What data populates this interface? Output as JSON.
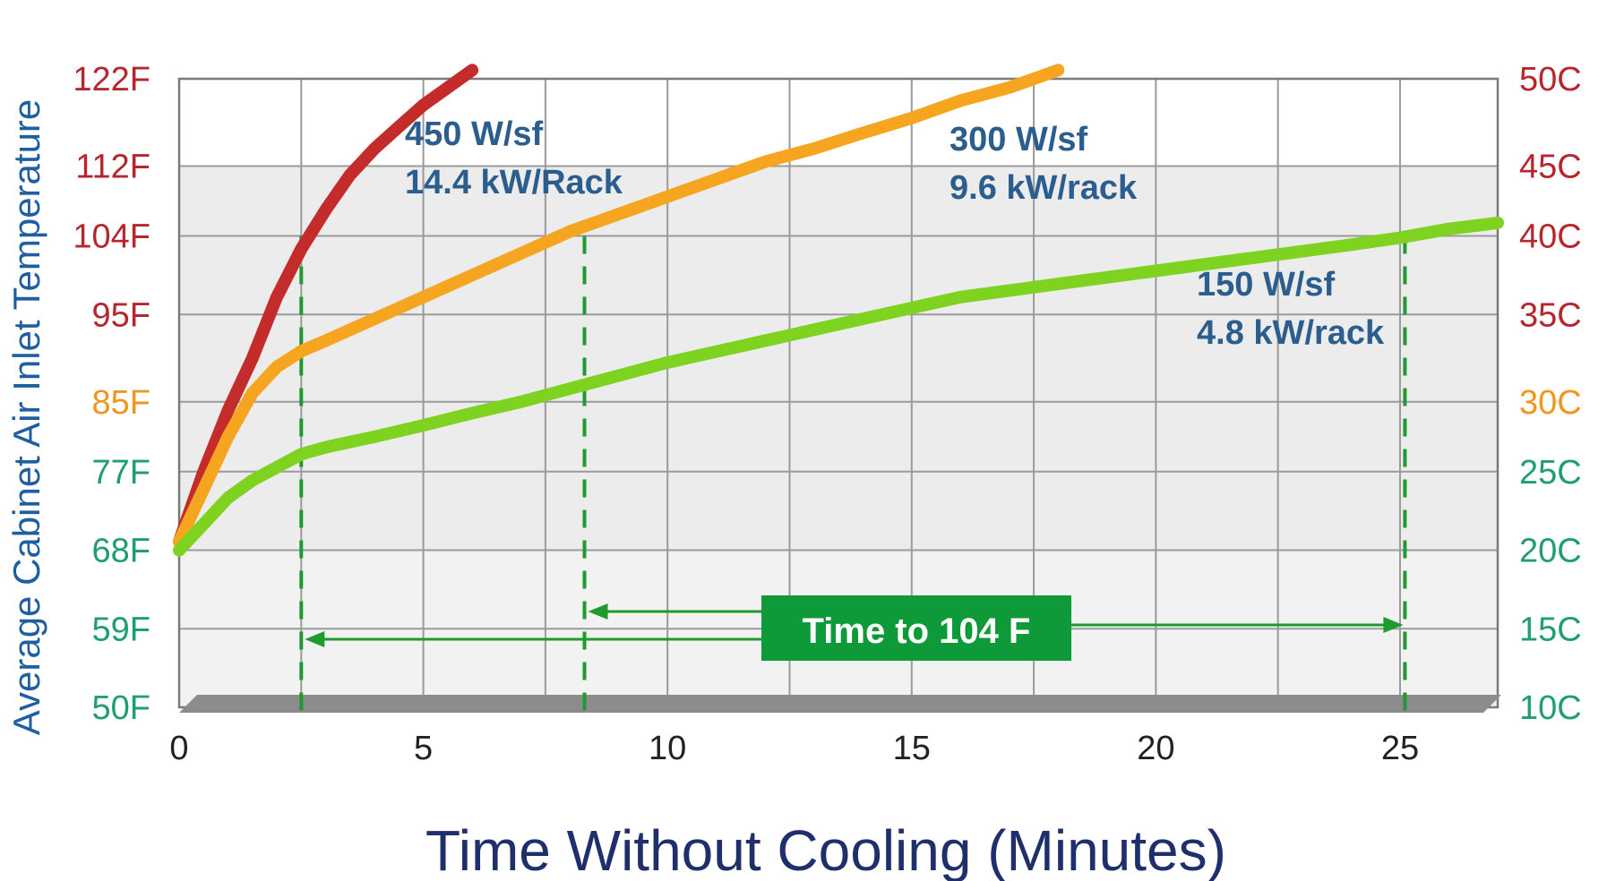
{
  "chart_data": {
    "type": "line",
    "xlabel": "Time Without Cooling (Minutes)",
    "ylabel": "Average Cabinet Air Inlet Temperature",
    "xlim": [
      0,
      27
    ],
    "ylim_f": [
      50,
      122
    ],
    "x_ticks": [
      0,
      5,
      10,
      15,
      20,
      25
    ],
    "x_tick_labels": [
      "0",
      "5",
      "10",
      "15",
      "20",
      "25"
    ],
    "y_ticks_left": [
      {
        "value": 122,
        "label": "122F",
        "color": "#b5262d"
      },
      {
        "value": 112,
        "label": "112F",
        "color": "#b5262d"
      },
      {
        "value": 104,
        "label": "104F",
        "color": "#b5262d"
      },
      {
        "value": 95,
        "label": "95F",
        "color": "#b5262d"
      },
      {
        "value": 85,
        "label": "85F",
        "color": "#f0961e"
      },
      {
        "value": 77,
        "label": "77F",
        "color": "#1f9e6f"
      },
      {
        "value": 68,
        "label": "68F",
        "color": "#1f9e6f"
      },
      {
        "value": 59,
        "label": "59F",
        "color": "#1f9e6f"
      },
      {
        "value": 50,
        "label": "50F",
        "color": "#1f9e6f"
      }
    ],
    "y_ticks_right": [
      {
        "value": 122,
        "label": "50C",
        "color": "#b5262d"
      },
      {
        "value": 112,
        "label": "45C",
        "color": "#b5262d"
      },
      {
        "value": 104,
        "label": "40C",
        "color": "#b5262d"
      },
      {
        "value": 95,
        "label": "35C",
        "color": "#b5262d"
      },
      {
        "value": 85,
        "label": "30C",
        "color": "#f0961e"
      },
      {
        "value": 77,
        "label": "25C",
        "color": "#1f9e6f"
      },
      {
        "value": 68,
        "label": "20C",
        "color": "#1f9e6f"
      },
      {
        "value": 59,
        "label": "15C",
        "color": "#1f9e6f"
      },
      {
        "value": 50,
        "label": "10C",
        "color": "#1f9e6f"
      }
    ],
    "series": [
      {
        "name_line1": "450 W/sf",
        "name_line2": "14.4 kW/Rack",
        "color": "#c42b2b",
        "x": [
          0,
          0.5,
          1,
          1.5,
          2,
          2.5,
          3,
          3.5,
          4,
          4.5,
          5,
          5.5,
          6
        ],
        "y": [
          69,
          77,
          84,
          90,
          97,
          102.5,
          107,
          111,
          114,
          116.5,
          119,
          121,
          123
        ]
      },
      {
        "name_line1": "300 W/sf",
        "name_line2": "9.6 kW/rack",
        "color": "#f6a521",
        "x": [
          0,
          0.5,
          1,
          1.5,
          2,
          2.5,
          3,
          4,
          5,
          6,
          7,
          8,
          9,
          10,
          11,
          12,
          13,
          14,
          15,
          16,
          17,
          18
        ],
        "y": [
          69,
          75,
          81,
          86,
          89,
          90.8,
          92,
          94.5,
          97,
          99.5,
          102,
          104.5,
          106.5,
          108.5,
          110.5,
          112.5,
          114,
          115.8,
          117.5,
          119.5,
          121,
          123
        ]
      },
      {
        "name_line1": "150 W/sf",
        "name_line2": "4.8 kW/rack",
        "color": "#7ed321",
        "x": [
          0,
          0.5,
          1,
          1.5,
          2,
          2.5,
          3,
          4,
          5,
          6,
          7,
          8,
          9,
          10,
          12,
          14,
          16,
          18,
          20,
          22,
          24,
          25,
          26,
          27
        ],
        "y": [
          68,
          71,
          74,
          76,
          77.5,
          79,
          79.8,
          81,
          82.3,
          83.7,
          85,
          86.5,
          88,
          89.5,
          92,
          94.5,
          97,
          98.5,
          100,
          101.5,
          103,
          103.8,
          104.8,
          105.5
        ]
      }
    ],
    "threshold_markers": [
      {
        "x": 2.5,
        "color": "#1e9a2e"
      },
      {
        "x": 8.3,
        "color": "#1e9a2e"
      },
      {
        "x": 25.1,
        "color": "#1e9a2e"
      }
    ],
    "callout": {
      "text": "Time to 104 F",
      "bg_color": "#0f9a3a",
      "arrow_color": "#1e9a2e"
    },
    "grid": true,
    "band_colors": {
      "light": "#ffffff",
      "gray": "#e6e6e6",
      "floor": "#8c8c8c",
      "grid_line": "#9a9a9a"
    }
  }
}
